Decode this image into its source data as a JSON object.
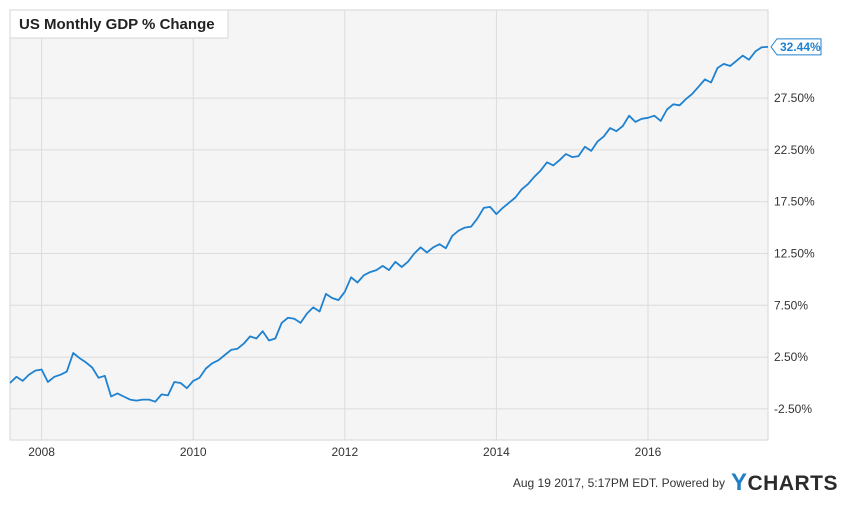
{
  "chart_data": {
    "type": "line",
    "title": "US Monthly GDP % Change",
    "ylim": [
      -5.5,
      36
    ],
    "y_ticks": [
      "-2.50%",
      "2.50%",
      "7.50%",
      "12.50%",
      "17.50%",
      "22.50%",
      "27.50%"
    ],
    "y_tick_values": [
      -2.5,
      2.5,
      7.5,
      12.5,
      17.5,
      22.5,
      27.5
    ],
    "x_ticks": [
      "2008",
      "2010",
      "2012",
      "2014",
      "2016"
    ],
    "x_tick_values": [
      2008,
      2010,
      2012,
      2014,
      2016
    ],
    "x_range": [
      2007.583,
      2017.583
    ],
    "grid": true,
    "last_value_label": "32.44%",
    "series": [
      {
        "color": "#1f82d0",
        "x": [
          2007.583,
          2007.667,
          2007.75,
          2007.833,
          2007.917,
          2008.0,
          2008.083,
          2008.167,
          2008.25,
          2008.333,
          2008.417,
          2008.5,
          2008.583,
          2008.667,
          2008.75,
          2008.833,
          2008.917,
          2009.0,
          2009.083,
          2009.167,
          2009.25,
          2009.333,
          2009.417,
          2009.5,
          2009.583,
          2009.667,
          2009.75,
          2009.833,
          2009.917,
          2010.0,
          2010.083,
          2010.167,
          2010.25,
          2010.333,
          2010.417,
          2010.5,
          2010.583,
          2010.667,
          2010.75,
          2010.833,
          2010.917,
          2011.0,
          2011.083,
          2011.167,
          2011.25,
          2011.333,
          2011.417,
          2011.5,
          2011.583,
          2011.667,
          2011.75,
          2011.833,
          2011.917,
          2012.0,
          2012.083,
          2012.167,
          2012.25,
          2012.333,
          2012.417,
          2012.5,
          2012.583,
          2012.667,
          2012.75,
          2012.833,
          2012.917,
          2013.0,
          2013.083,
          2013.167,
          2013.25,
          2013.333,
          2013.417,
          2013.5,
          2013.583,
          2013.667,
          2013.75,
          2013.833,
          2013.917,
          2014.0,
          2014.083,
          2014.167,
          2014.25,
          2014.333,
          2014.417,
          2014.5,
          2014.583,
          2014.667,
          2014.75,
          2014.833,
          2014.917,
          2015.0,
          2015.083,
          2015.167,
          2015.25,
          2015.333,
          2015.417,
          2015.5,
          2015.583,
          2015.667,
          2015.75,
          2015.833,
          2015.917,
          2016.0,
          2016.083,
          2016.167,
          2016.25,
          2016.333,
          2016.417,
          2016.5,
          2016.583,
          2016.667,
          2016.75,
          2016.833,
          2016.917,
          2017.0,
          2017.083,
          2017.167,
          2017.25,
          2017.333,
          2017.417,
          2017.5,
          2017.583
        ],
        "y": [
          0.0,
          0.6,
          0.2,
          0.8,
          1.2,
          1.3,
          0.1,
          0.6,
          0.8,
          1.1,
          2.9,
          2.4,
          2.0,
          1.5,
          0.5,
          0.7,
          -1.3,
          -1.0,
          -1.3,
          -1.6,
          -1.7,
          -1.6,
          -1.6,
          -1.8,
          -1.1,
          -1.2,
          0.1,
          0.0,
          -0.5,
          0.2,
          0.5,
          1.4,
          1.9,
          2.2,
          2.7,
          3.2,
          3.3,
          3.8,
          4.5,
          4.3,
          5.0,
          4.1,
          4.3,
          5.8,
          6.3,
          6.2,
          5.8,
          6.7,
          7.3,
          6.9,
          8.6,
          8.2,
          8.0,
          8.8,
          10.2,
          9.7,
          10.4,
          10.7,
          10.9,
          11.3,
          10.9,
          11.7,
          11.2,
          11.7,
          12.5,
          13.1,
          12.6,
          13.1,
          13.4,
          13.0,
          14.2,
          14.7,
          15.0,
          15.1,
          15.9,
          16.9,
          17.0,
          16.3,
          16.9,
          17.4,
          17.9,
          18.7,
          19.2,
          19.9,
          20.5,
          21.3,
          21.0,
          21.5,
          22.1,
          21.8,
          21.9,
          22.8,
          22.4,
          23.3,
          23.8,
          24.6,
          24.3,
          24.8,
          25.8,
          25.2,
          25.5,
          25.6,
          25.8,
          25.3,
          26.4,
          26.9,
          26.8,
          27.4,
          27.9,
          28.6,
          29.3,
          29.0,
          30.4,
          30.8,
          30.6,
          31.1,
          31.6,
          31.2,
          32.0,
          32.4,
          32.44
        ]
      }
    ]
  },
  "footer": {
    "timestamp": "Aug 19 2017, 5:17PM EDT.  Powered by",
    "brand_y": "Y",
    "brand_rest": "CHARTS"
  }
}
